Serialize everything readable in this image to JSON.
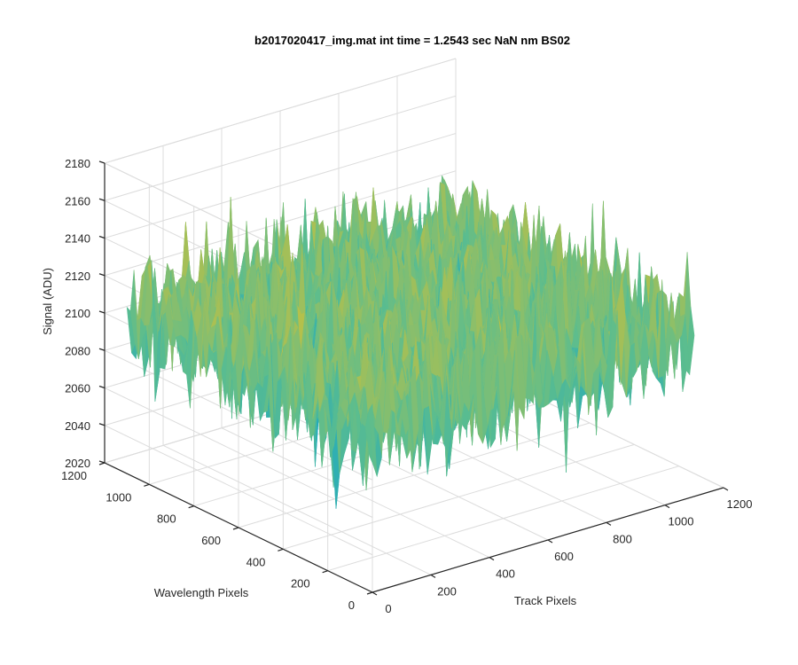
{
  "chart_data": {
    "type": "surface",
    "title": "b2017020417_img.mat int time = 1.2543 sec  NaN nm BS02",
    "xlabel": "Track Pixels",
    "ylabel": "Wavelength Pixels",
    "zlabel": "Signal (ADU)",
    "xlim": [
      0,
      1200
    ],
    "ylim": [
      0,
      1200
    ],
    "zlim": [
      2020,
      2180
    ],
    "xticks": [
      "0",
      "200",
      "400",
      "600",
      "800",
      "1000",
      "1200"
    ],
    "yticks": [
      "0",
      "200",
      "400",
      "600",
      "800",
      "1000",
      "1200"
    ],
    "zticks": [
      "2020",
      "2040",
      "2060",
      "2080",
      "2100",
      "2120",
      "2140",
      "2160",
      "2180"
    ],
    "grid": true,
    "colormap": "parula",
    "surface": {
      "x_range": [
        0,
        1100
      ],
      "y_range": [
        0,
        1100
      ],
      "mean_signal": 2105,
      "noise_peak_to_peak": 110,
      "min_signal": 2040,
      "max_signal": 2160
    }
  },
  "colors": {
    "low": "#0c72d8",
    "mid_low": "#14a6c8",
    "mid": "#5cbd8e",
    "mid_high": "#b6c04a",
    "high": "#e3bc3a"
  }
}
